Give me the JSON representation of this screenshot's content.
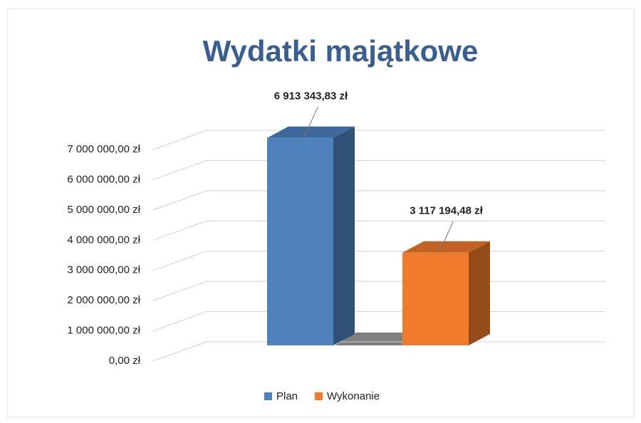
{
  "chart_data": {
    "type": "bar3d",
    "title": "Wydatki majątkowe",
    "categories": [
      null
    ],
    "series": [
      {
        "name": "Plan",
        "color": "#4f81bd",
        "values": [
          6913343.83
        ],
        "value_labels": [
          "6 913 343,83 zł"
        ]
      },
      {
        "name": "Wykonanie",
        "color": "#f07b2c",
        "values": [
          3117194.48
        ],
        "value_labels": [
          "3 117 194,48 zł"
        ]
      }
    ],
    "ylim": [
      0,
      7000000
    ],
    "yticks": [
      {
        "value": 0,
        "label": "0,00 zł"
      },
      {
        "value": 1000000,
        "label": "1 000 000,00 zł"
      },
      {
        "value": 2000000,
        "label": "2 000 000,00 zł"
      },
      {
        "value": 3000000,
        "label": "3 000 000,00 zł"
      },
      {
        "value": 4000000,
        "label": "4 000 000,00 zł"
      },
      {
        "value": 5000000,
        "label": "5 000 000,00 zł"
      },
      {
        "value": 6000000,
        "label": "6 000 000,00 zł"
      },
      {
        "value": 7000000,
        "label": "7 000 000,00 zł"
      }
    ],
    "grid": true,
    "legend": "bottom"
  }
}
